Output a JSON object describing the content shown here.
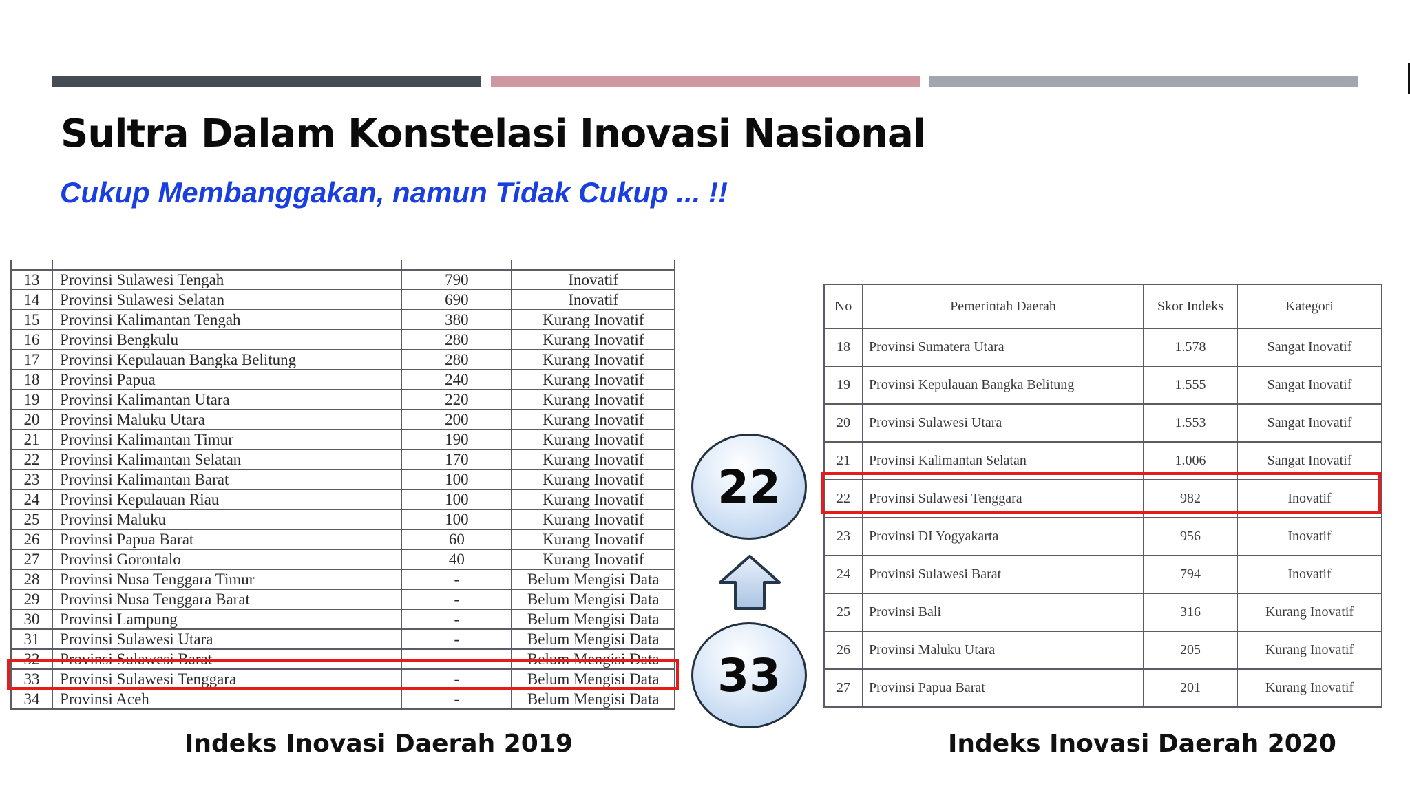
{
  "slide": {
    "title": "Sultra Dalam Konstelasi Inovasi Nasional",
    "subtitle": "Cukup Membanggakan, namun Tidak Cukup ... !!",
    "colors": {
      "bar_1": "#454c54",
      "bar_2": "#cf97a2",
      "bar_3": "#a2a6ae",
      "highlight": "#e51c1c",
      "subtitle": "#1a3fe0"
    }
  },
  "table_2019": {
    "caption": "Indeks Inovasi Daerah 2019",
    "rows": [
      {
        "no": "13",
        "name": "Provinsi Sulawesi Tengah",
        "score": "790",
        "category": "Inovatif"
      },
      {
        "no": "14",
        "name": "Provinsi Sulawesi Selatan",
        "score": "690",
        "category": "Inovatif"
      },
      {
        "no": "15",
        "name": "Provinsi Kalimantan Tengah",
        "score": "380",
        "category": "Kurang Inovatif"
      },
      {
        "no": "16",
        "name": "Provinsi Bengkulu",
        "score": "280",
        "category": "Kurang Inovatif"
      },
      {
        "no": "17",
        "name": "Provinsi Kepulauan Bangka Belitung",
        "score": "280",
        "category": "Kurang Inovatif"
      },
      {
        "no": "18",
        "name": "Provinsi Papua",
        "score": "240",
        "category": "Kurang Inovatif"
      },
      {
        "no": "19",
        "name": "Provinsi Kalimantan Utara",
        "score": "220",
        "category": "Kurang Inovatif"
      },
      {
        "no": "20",
        "name": "Provinsi Maluku Utara",
        "score": "200",
        "category": "Kurang Inovatif"
      },
      {
        "no": "21",
        "name": "Provinsi Kalimantan Timur",
        "score": "190",
        "category": "Kurang Inovatif"
      },
      {
        "no": "22",
        "name": "Provinsi Kalimantan Selatan",
        "score": "170",
        "category": "Kurang Inovatif"
      },
      {
        "no": "23",
        "name": "Provinsi Kalimantan Barat",
        "score": "100",
        "category": "Kurang Inovatif"
      },
      {
        "no": "24",
        "name": "Provinsi Kepulauan Riau",
        "score": "100",
        "category": "Kurang Inovatif"
      },
      {
        "no": "25",
        "name": "Provinsi Maluku",
        "score": "100",
        "category": "Kurang Inovatif"
      },
      {
        "no": "26",
        "name": "Provinsi Papua Barat",
        "score": "60",
        "category": "Kurang Inovatif"
      },
      {
        "no": "27",
        "name": "Provinsi Gorontalo",
        "score": "40",
        "category": "Kurang Inovatif"
      },
      {
        "no": "28",
        "name": "Provinsi Nusa Tenggara Timur",
        "score": "-",
        "category": "Belum Mengisi Data"
      },
      {
        "no": "29",
        "name": "Provinsi Nusa Tenggara Barat",
        "score": "-",
        "category": "Belum Mengisi Data"
      },
      {
        "no": "30",
        "name": "Provinsi Lampung",
        "score": "-",
        "category": "Belum Mengisi Data"
      },
      {
        "no": "31",
        "name": "Provinsi Sulawesi Utara",
        "score": "-",
        "category": "Belum Mengisi Data"
      },
      {
        "no": "32",
        "name": "Provinsi Sulawesi Barat",
        "score": "-",
        "category": "Belum Mengisi Data"
      },
      {
        "no": "33",
        "name": "Provinsi Sulawesi Tenggara",
        "score": "-",
        "category": "Belum Mengisi Data"
      },
      {
        "no": "34",
        "name": "Provinsi Aceh",
        "score": "-",
        "category": "Belum Mengisi Data"
      }
    ]
  },
  "table_2020": {
    "caption": "Indeks Inovasi Daerah 2020",
    "headers": {
      "no": "No",
      "name": "Pemerintah Daerah",
      "score": "Skor Indeks",
      "category": "Kategori"
    },
    "rows": [
      {
        "no": "18",
        "name": "Provinsi Sumatera Utara",
        "score": "1.578",
        "category": "Sangat Inovatif"
      },
      {
        "no": "19",
        "name": "Provinsi Kepulauan Bangka Belitung",
        "score": "1.555",
        "category": "Sangat Inovatif"
      },
      {
        "no": "20",
        "name": "Provinsi Sulawesi Utara",
        "score": "1.553",
        "category": "Sangat Inovatif"
      },
      {
        "no": "21",
        "name": "Provinsi Kalimantan Selatan",
        "score": "1.006",
        "category": "Sangat Inovatif"
      },
      {
        "no": "22",
        "name": "Provinsi Sulawesi Tenggara",
        "score": "982",
        "category": "Inovatif"
      },
      {
        "no": "23",
        "name": "Provinsi DI Yogyakarta",
        "score": "956",
        "category": "Inovatif"
      },
      {
        "no": "24",
        "name": "Provinsi Sulawesi Barat",
        "score": "794",
        "category": "Inovatif"
      },
      {
        "no": "25",
        "name": "Provinsi Bali",
        "score": "316",
        "category": "Kurang Inovatif"
      },
      {
        "no": "26",
        "name": "Provinsi Maluku Utara",
        "score": "205",
        "category": "Kurang Inovatif"
      },
      {
        "no": "27",
        "name": "Provinsi Papua Barat",
        "score": "201",
        "category": "Kurang Inovatif"
      }
    ]
  },
  "ranking": {
    "rank_2020": "22",
    "rank_2019": "33",
    "arrow_icon": "up-arrow-icon"
  }
}
